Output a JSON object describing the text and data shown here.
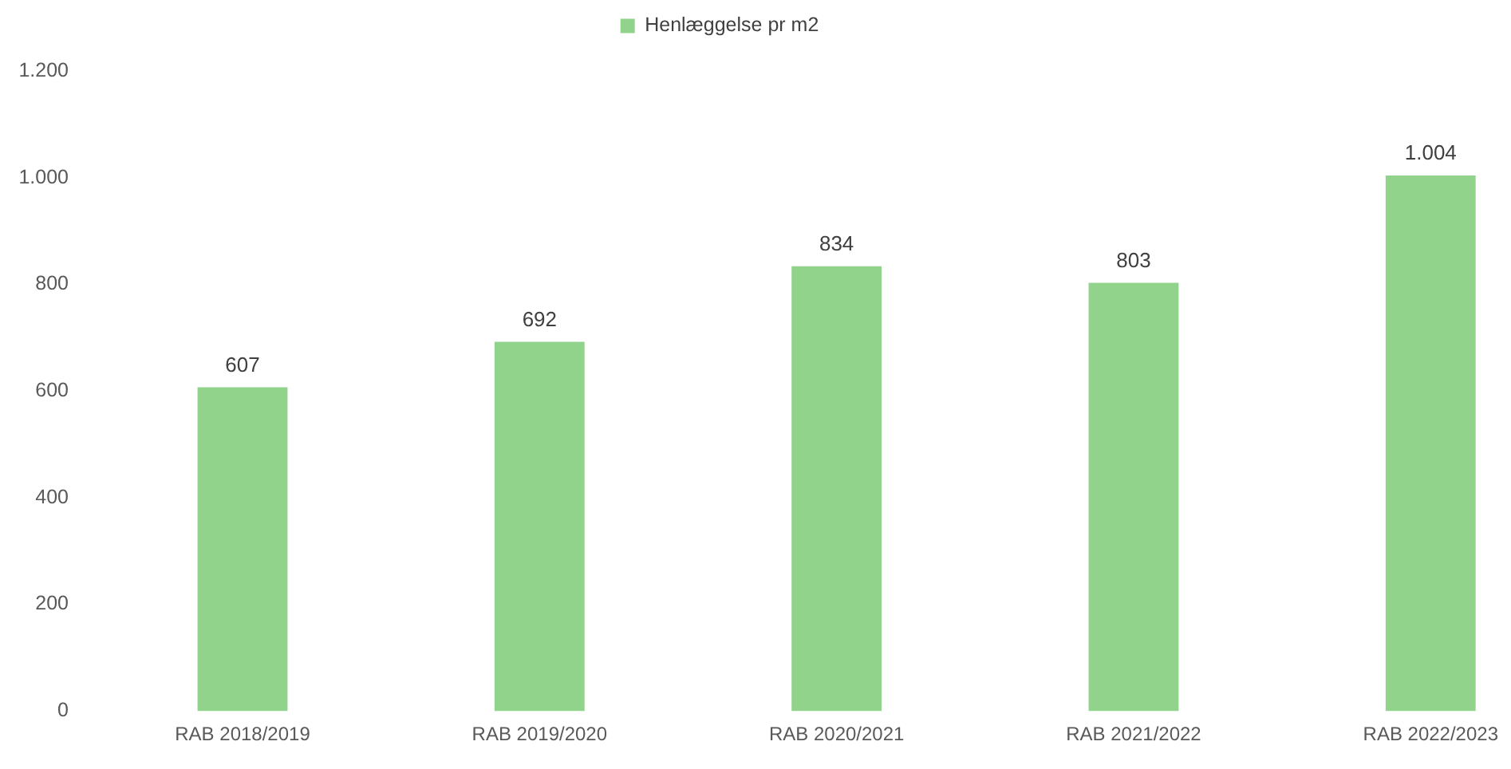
{
  "chart_data": {
    "type": "bar",
    "categories": [
      "RAB 2018/2019",
      "RAB 2019/2020",
      "RAB 2020/2021",
      "RAB 2021/2022",
      "RAB 2022/2023"
    ],
    "series": [
      {
        "name": "Henlæggelse pr m2",
        "color": "#92d38c",
        "values": [
          607,
          692,
          834,
          803,
          1004
        ],
        "value_labels": [
          "607",
          "692",
          "834",
          "803",
          "1.004"
        ]
      }
    ],
    "ylim": [
      0,
      1200
    ],
    "yticks": [
      0,
      200,
      400,
      600,
      800,
      {
        "value": 1000,
        "label": "1.000"
      },
      {
        "value": 1200,
        "label": "1.200"
      }
    ],
    "grid": false,
    "legend": "top"
  }
}
